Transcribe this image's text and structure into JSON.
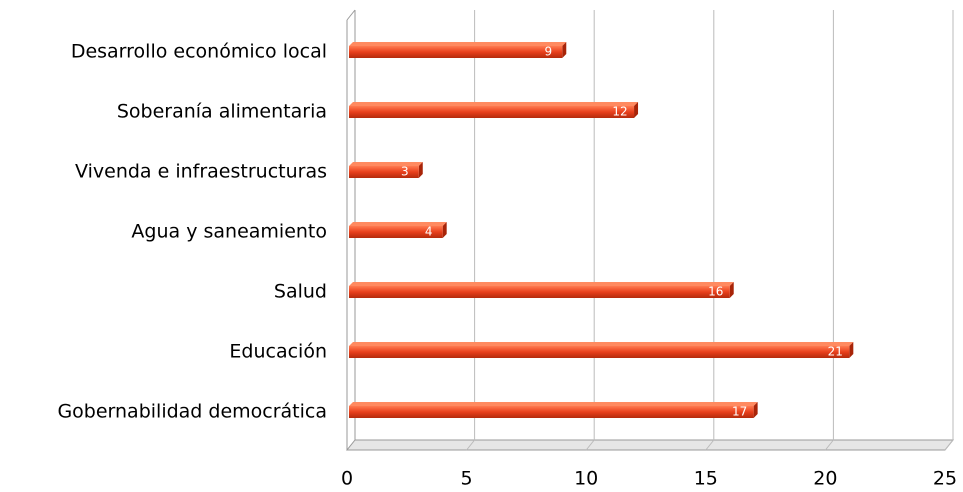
{
  "chart_data": {
    "type": "bar",
    "orientation": "horizontal",
    "categories": [
      "Desarrollo económico local",
      "Soberanía alimentaria",
      "Vivenda e infraestructuras",
      "Agua y saneamiento",
      "Salud",
      "Educación",
      "Gobernabilidad democrática"
    ],
    "values": [
      9,
      12,
      3,
      4,
      16,
      21,
      17
    ],
    "color": "#e8401c",
    "xlim": [
      0,
      25
    ],
    "xticks": [
      0,
      5,
      10,
      15,
      20,
      25
    ],
    "grid": true
  }
}
